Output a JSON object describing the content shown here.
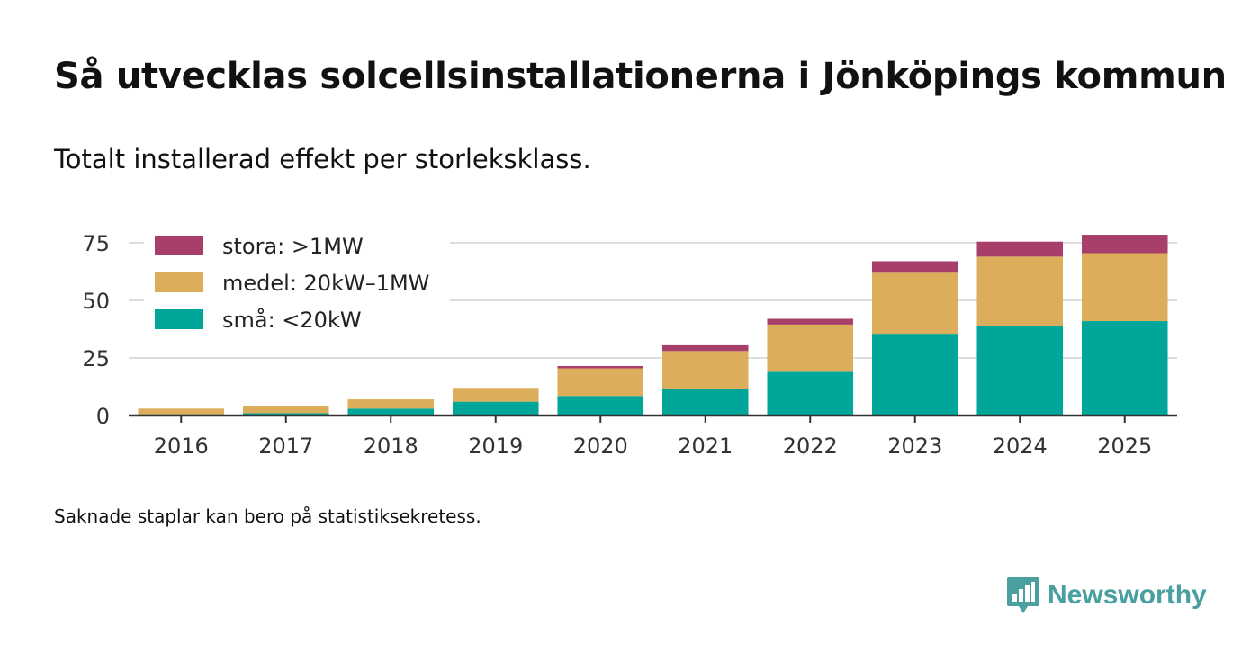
{
  "header": {
    "title": "Så utvecklas solcellsinstallationerna i Jönköpings kommun",
    "subtitle": "Totalt installerad effekt per storleksklass."
  },
  "footnote": "Saknade staplar kan bero på statistiksekretess.",
  "brand": {
    "name": "Newsworthy",
    "logo_icon": "bar-chart-speech-bubble-icon",
    "color": "#4a9fa0"
  },
  "chart_data": {
    "type": "bar",
    "stacked": true,
    "categories": [
      "2016",
      "2017",
      "2018",
      "2019",
      "2020",
      "2021",
      "2022",
      "2023",
      "2024",
      "2025"
    ],
    "series": [
      {
        "name": "små: <20kW",
        "color": "#00a69a",
        "values": [
          0.5,
          1,
          3,
          6,
          8.5,
          11.5,
          19,
          35.5,
          39,
          41
        ]
      },
      {
        "name": "medel: 20kW–1MW",
        "color": "#dcad5a",
        "values": [
          2.5,
          3,
          4,
          6,
          12,
          16.5,
          20.5,
          26.5,
          30,
          29.5
        ]
      },
      {
        "name": "stora: >1MW",
        "color": "#a83f6b",
        "values": [
          0,
          0,
          0,
          0,
          1,
          2.5,
          2.5,
          5,
          6.5,
          8
        ]
      }
    ],
    "legend_order": [
      "stora: >1MW",
      "medel: 20kW–1MW",
      "små: <20kW"
    ],
    "yticks": [
      0,
      25,
      50,
      75
    ],
    "ylim": [
      0,
      80
    ],
    "legend_position": "top-left",
    "grid": true,
    "xlabel": "",
    "ylabel": ""
  }
}
